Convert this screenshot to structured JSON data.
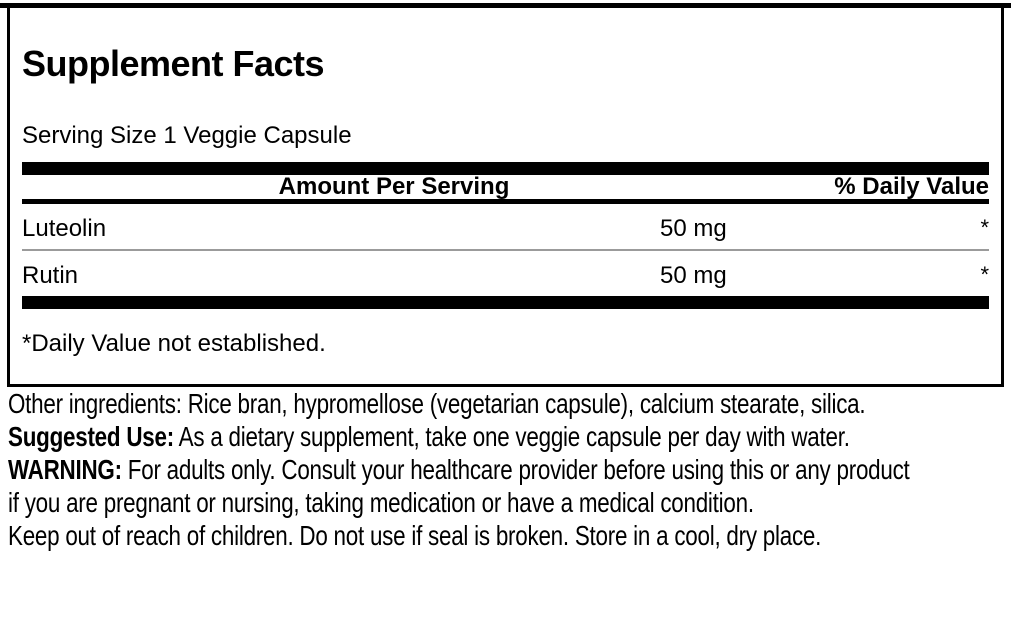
{
  "colors": {
    "text": "#000000",
    "divider": "#9b9b9b",
    "background": "#ffffff"
  },
  "panel": {
    "title": "Supplement Facts",
    "serving_size": "Serving Size 1 Veggie Capsule",
    "columns": {
      "amount_header": "Amount Per Serving",
      "daily_value_header": "% Daily Value"
    },
    "rows": [
      {
        "name": "Luteolin",
        "amount": "50 mg",
        "daily_value": "*"
      },
      {
        "name": "Rutin",
        "amount": "50 mg",
        "daily_value": "*"
      }
    ],
    "footnote": "*Daily Value not established."
  },
  "notes": {
    "other_ingredients": "Other ingredients: Rice bran, hypromellose (vegetarian capsule), calcium stearate, silica.",
    "suggested_use_label": "Suggested Use:",
    "suggested_use_text": " As a dietary supplement, take one veggie capsule per day with water.",
    "warning_label": "WARNING:",
    "warning_text": " For adults only. Consult your healthcare provider before using this or any product\nif you are pregnant or nursing, taking medication or have a medical condition.",
    "storage": "Keep out of reach of children. Do not use if seal is broken. Store in a cool, dry place."
  }
}
